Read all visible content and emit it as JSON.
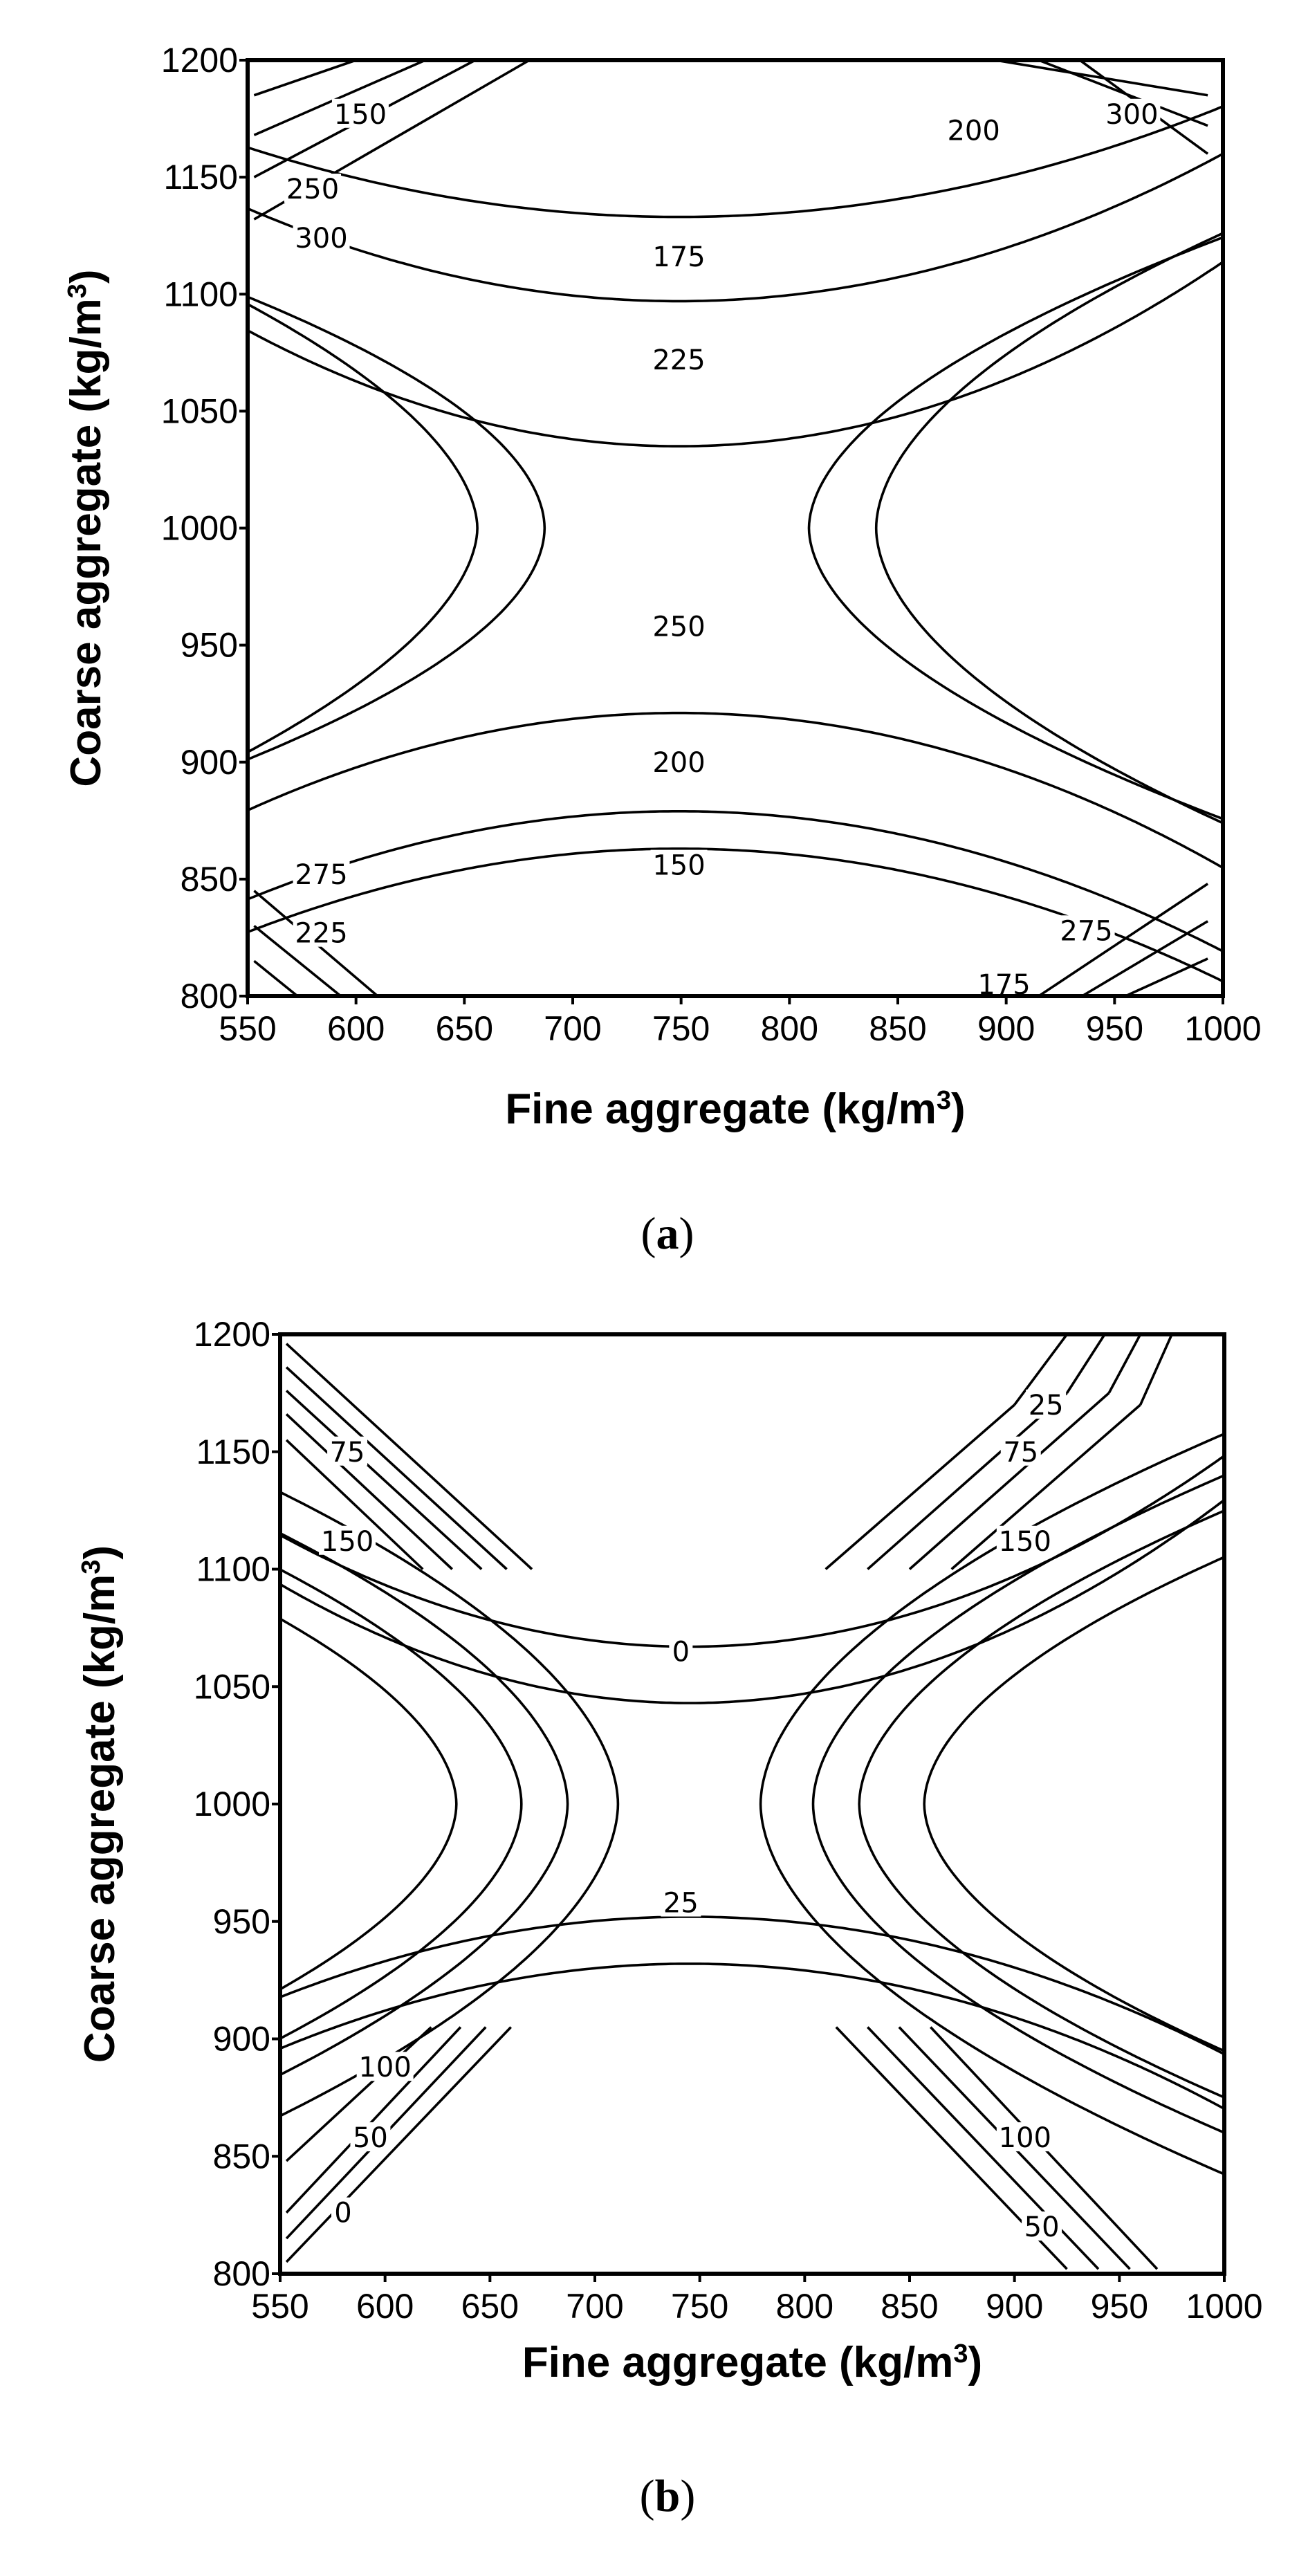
{
  "chart_data": [
    {
      "type": "contour",
      "xlabel_main": "Fine aggregate (kg/m",
      "xlabel_sup": "3",
      "xlabel_end": ")",
      "ylabel_main": "Coarse aggregate (kg/m",
      "ylabel_sup": "3",
      "ylabel_end": ")",
      "xlim": [
        550,
        1000
      ],
      "ylim": [
        800,
        1200
      ],
      "xticks": [
        "550",
        "600",
        "650",
        "700",
        "750",
        "800",
        "850",
        "900",
        "950",
        "1000"
      ],
      "yticks": [
        "800",
        "850",
        "900",
        "950",
        "1000",
        "1050",
        "1100",
        "1150",
        "1200"
      ],
      "grid": false,
      "saddle": [
        749,
        1000
      ],
      "caption_open": "(",
      "caption_letter": "a",
      "caption_close": ")",
      "upper_levels": [
        {
          "a": 0.00075,
          "b": 1,
          "c": 1133
        },
        {
          "a": 0.001,
          "b": 1,
          "c": 1097
        },
        {
          "a": 0.00125,
          "b": 1,
          "c": 1035
        }
      ],
      "lower_levels": [
        {
          "a": 0.00105,
          "b": 1,
          "c": 921
        },
        {
          "a": 0.00095,
          "b": 1,
          "c": 879
        },
        {
          "a": 0.0009,
          "b": 1,
          "c": 863
        }
      ],
      "left_levels": [
        {
          "a": 2.88,
          "b": 1.8,
          "c": 1000,
          "d": 656
        },
        {
          "a": 2.22,
          "b": 1.9,
          "c": 1000,
          "d": 687
        }
      ],
      "right_levels": [
        {
          "a": 2.55,
          "b": 1.85,
          "c": 1000,
          "d": 809
        },
        {
          "a": 2.08,
          "b": 1.85,
          "c": 1000,
          "d": 840
        }
      ],
      "corner_lines": [
        {
          "p1": [
            553,
            1185
          ],
          "p2": [
            600,
            1200
          ]
        },
        {
          "p1": [
            553,
            1168
          ],
          "p2": [
            632,
            1200
          ]
        },
        {
          "p1": [
            553,
            1150
          ],
          "p2": [
            655,
            1200
          ]
        },
        {
          "p1": [
            553,
            1132
          ],
          "p2": [
            680,
            1200
          ]
        },
        {
          "p1": [
            895,
            1200
          ],
          "p2": [
            993,
            1185
          ]
        },
        {
          "p1": [
            915,
            1200
          ],
          "p2": [
            993,
            1172
          ]
        },
        {
          "p1": [
            934,
            1200
          ],
          "p2": [
            993,
            1160
          ]
        },
        {
          "p1": [
            553,
            815
          ],
          "p2": [
            573,
            800
          ]
        },
        {
          "p1": [
            553,
            830
          ],
          "p2": [
            593,
            800
          ]
        },
        {
          "p1": [
            553,
            845
          ],
          "p2": [
            610,
            800
          ]
        },
        {
          "p1": [
            955,
            800
          ],
          "p2": [
            993,
            816
          ]
        },
        {
          "p1": [
            935,
            800
          ],
          "p2": [
            993,
            832
          ]
        },
        {
          "p1": [
            915,
            800
          ],
          "p2": [
            993,
            848
          ]
        }
      ],
      "contour_labels": [
        {
          "text": "150",
          "x": 602,
          "y": 1177
        },
        {
          "text": "250",
          "x": 580,
          "y": 1145
        },
        {
          "text": "300",
          "x": 584,
          "y": 1124
        },
        {
          "text": "175",
          "x": 749,
          "y": 1116
        },
        {
          "text": "225",
          "x": 749,
          "y": 1072
        },
        {
          "text": "200",
          "x": 885,
          "y": 1170
        },
        {
          "text": "300",
          "x": 958,
          "y": 1177
        },
        {
          "text": "250",
          "x": 749,
          "y": 958
        },
        {
          "text": "200",
          "x": 749,
          "y": 900
        },
        {
          "text": "150",
          "x": 749,
          "y": 856
        },
        {
          "text": "275",
          "x": 584,
          "y": 852
        },
        {
          "text": "225",
          "x": 584,
          "y": 827
        },
        {
          "text": "275",
          "x": 937,
          "y": 828
        },
        {
          "text": "175",
          "x": 899,
          "y": 805
        }
      ]
    },
    {
      "type": "contour",
      "xlabel_main": "Fine aggregate (kg/m",
      "xlabel_sup": "3",
      "xlabel_end": ")",
      "ylabel_main": "Coarse aggregate (kg/m",
      "ylabel_sup": "3",
      "ylabel_end": ")",
      "xlim": [
        550,
        1000
      ],
      "ylim": [
        800,
        1200
      ],
      "xticks": [
        "550",
        "600",
        "650",
        "700",
        "750",
        "800",
        "850",
        "900",
        "950",
        "1000"
      ],
      "yticks": [
        "800",
        "850",
        "900",
        "950",
        "1000",
        "1050",
        "1100",
        "1150",
        "1200"
      ],
      "grid": false,
      "saddle": [
        745,
        1000
      ],
      "caption_open": "(",
      "caption_letter": "b",
      "caption_close": ")",
      "upper_levels": [
        {
          "a": 0.00125,
          "b": 1,
          "c": 1067
        },
        {
          "a": 0.00133,
          "b": 1,
          "c": 1043
        }
      ],
      "lower_levels": [
        {
          "a": 0.0009,
          "b": 1,
          "c": 952
        },
        {
          "a": 0.00095,
          "b": 1,
          "c": 932
        }
      ],
      "left_levels": [
        {
          "a": 2.6,
          "b": 1.85,
          "c": 1000,
          "d": 634
        },
        {
          "a": 2.3,
          "b": 1.85,
          "c": 1000,
          "d": 665
        },
        {
          "a": 2.1,
          "b": 1.85,
          "c": 1000,
          "d": 687
        },
        {
          "a": 1.9,
          "b": 1.85,
          "c": 1000,
          "d": 711
        }
      ],
      "right_levels": [
        {
          "a": 1.9,
          "b": 1.85,
          "c": 1000,
          "d": 779
        },
        {
          "a": 2.1,
          "b": 1.85,
          "c": 1000,
          "d": 804
        },
        {
          "a": 2.3,
          "b": 1.85,
          "c": 1000,
          "d": 826
        },
        {
          "a": 2.6,
          "b": 1.85,
          "c": 1000,
          "d": 857
        }
      ],
      "corner_lines": [
        {
          "p1": [
            553,
            1196
          ],
          "p2": [
            670,
            1100
          ]
        },
        {
          "p1": [
            553,
            1186
          ],
          "p2": [
            658,
            1100
          ]
        },
        {
          "p1": [
            553,
            1176
          ],
          "p2": [
            646,
            1100
          ]
        },
        {
          "p1": [
            553,
            1166
          ],
          "p2": [
            632,
            1100
          ]
        },
        {
          "p1": [
            553,
            1155
          ],
          "p2": [
            618,
            1100
          ]
        },
        {
          "p1": [
            810,
            1100
          ],
          "p2": [
            900,
            1170
          ]
        },
        {
          "p1": [
            900,
            1170
          ],
          "p2": [
            925,
            1200
          ]
        },
        {
          "p1": [
            830,
            1100
          ],
          "p2": [
            925,
            1175
          ]
        },
        {
          "p1": [
            925,
            1175
          ],
          "p2": [
            943,
            1200
          ]
        },
        {
          "p1": [
            850,
            1100
          ],
          "p2": [
            945,
            1175
          ]
        },
        {
          "p1": [
            945,
            1175
          ],
          "p2": [
            960,
            1200
          ]
        },
        {
          "p1": [
            870,
            1100
          ],
          "p2": [
            960,
            1170
          ]
        },
        {
          "p1": [
            960,
            1170
          ],
          "p2": [
            975,
            1200
          ]
        },
        {
          "p1": [
            553,
            805
          ],
          "p2": [
            660,
            905
          ]
        },
        {
          "p1": [
            553,
            815
          ],
          "p2": [
            648,
            905
          ]
        },
        {
          "p1": [
            553,
            826
          ],
          "p2": [
            636,
            905
          ]
        },
        {
          "p1": [
            553,
            848
          ],
          "p2": [
            622,
            905
          ]
        },
        {
          "p1": [
            860,
            905
          ],
          "p2": [
            968,
            802
          ]
        },
        {
          "p1": [
            845,
            905
          ],
          "p2": [
            955,
            802
          ]
        },
        {
          "p1": [
            830,
            905
          ],
          "p2": [
            940,
            802
          ]
        },
        {
          "p1": [
            815,
            905
          ],
          "p2": [
            925,
            802
          ]
        }
      ],
      "contour_labels": [
        {
          "text": "75",
          "x": 582,
          "y": 1150
        },
        {
          "text": "150",
          "x": 582,
          "y": 1112
        },
        {
          "text": "0",
          "x": 741,
          "y": 1065
        },
        {
          "text": "25",
          "x": 915,
          "y": 1170
        },
        {
          "text": "75",
          "x": 903,
          "y": 1150
        },
        {
          "text": "150",
          "x": 905,
          "y": 1112
        },
        {
          "text": "25",
          "x": 741,
          "y": 958
        },
        {
          "text": "100",
          "x": 600,
          "y": 888
        },
        {
          "text": "50",
          "x": 593,
          "y": 858
        },
        {
          "text": "0",
          "x": 580,
          "y": 826
        },
        {
          "text": "100",
          "x": 905,
          "y": 858
        },
        {
          "text": "50",
          "x": 913,
          "y": 820
        }
      ]
    }
  ]
}
